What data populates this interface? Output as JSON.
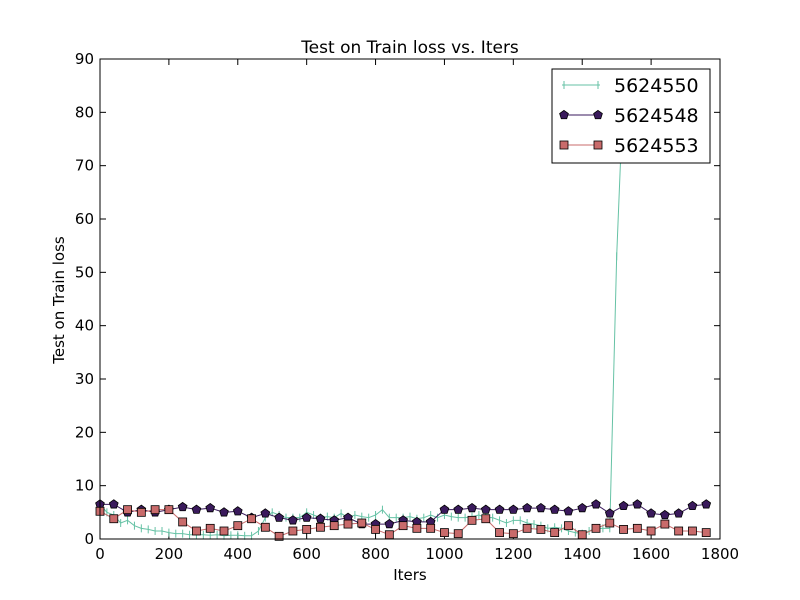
{
  "chart_data": {
    "type": "line",
    "title": "Test on Train loss  vs. Iters",
    "xlabel": "Iters",
    "ylabel": "Test on Train loss",
    "xlim": [
      0,
      1800
    ],
    "ylim": [
      0,
      90
    ],
    "xticks": [
      0,
      200,
      400,
      600,
      800,
      1000,
      1200,
      1400,
      1600,
      1800
    ],
    "yticks": [
      0,
      10,
      20,
      30,
      40,
      50,
      60,
      70,
      80,
      90
    ],
    "grid": false,
    "legend_position": "top-right",
    "series": [
      {
        "name": "5624550",
        "color": "#66c2a5",
        "marker": "tick",
        "x": [
          0,
          20,
          40,
          60,
          80,
          100,
          120,
          140,
          160,
          180,
          200,
          220,
          240,
          260,
          280,
          300,
          320,
          340,
          360,
          380,
          400,
          420,
          440,
          460,
          480,
          500,
          520,
          540,
          560,
          580,
          600,
          620,
          640,
          660,
          680,
          700,
          720,
          740,
          760,
          780,
          800,
          820,
          840,
          860,
          880,
          900,
          920,
          940,
          960,
          980,
          1000,
          1020,
          1040,
          1060,
          1080,
          1100,
          1120,
          1140,
          1160,
          1180,
          1200,
          1220,
          1240,
          1260,
          1280,
          1300,
          1320,
          1340,
          1360,
          1380,
          1400,
          1420,
          1440,
          1460,
          1480,
          1500,
          1520,
          1540,
          1560,
          1580,
          1600,
          1620,
          1640,
          1660,
          1680,
          1700,
          1720,
          1740,
          1760
        ],
        "y": [
          6.5,
          5.0,
          4.5,
          3.0,
          3.5,
          2.5,
          2.0,
          1.8,
          1.5,
          1.5,
          1.2,
          1.0,
          1.0,
          0.8,
          0.8,
          0.8,
          0.7,
          0.8,
          0.6,
          0.7,
          0.7,
          0.6,
          0.6,
          1.5,
          4.0,
          5.0,
          4.5,
          4.0,
          4.0,
          4.0,
          5.0,
          4.5,
          4.0,
          4.2,
          4.0,
          4.8,
          4.0,
          4.5,
          4.2,
          4.0,
          4.5,
          5.5,
          4.0,
          4.0,
          4.0,
          4.2,
          3.8,
          4.0,
          4.5,
          4.0,
          4.5,
          4.2,
          4.0,
          4.0,
          4.2,
          4.5,
          4.0,
          4.0,
          3.5,
          3.0,
          3.5,
          3.5,
          3.0,
          2.8,
          2.5,
          2.0,
          2.2,
          2.0,
          1.5,
          1.2,
          1.0,
          1.5,
          2.0,
          2.0,
          2.0,
          53.0,
          85.0,
          85.0,
          85.0,
          85.0,
          85.0,
          85.0,
          85.0,
          85.0,
          85.0,
          85.0,
          85.0,
          85.0,
          85.0
        ]
      },
      {
        "name": "5624548",
        "color": "#3a1a5c",
        "marker": "pentagon",
        "x": [
          0,
          40,
          80,
          120,
          160,
          200,
          240,
          280,
          320,
          360,
          400,
          440,
          480,
          520,
          560,
          600,
          640,
          680,
          720,
          760,
          800,
          840,
          880,
          920,
          960,
          1000,
          1040,
          1080,
          1120,
          1160,
          1200,
          1240,
          1280,
          1320,
          1360,
          1400,
          1440,
          1480,
          1520,
          1560,
          1600,
          1640,
          1680,
          1720,
          1760
        ],
        "y": [
          6.5,
          6.5,
          5.0,
          5.5,
          5.0,
          5.5,
          6.0,
          5.5,
          5.8,
          5.0,
          5.2,
          4.0,
          4.8,
          4.0,
          3.5,
          4.0,
          3.8,
          3.5,
          4.0,
          2.8,
          2.8,
          2.8,
          3.5,
          3.2,
          3.2,
          5.5,
          5.5,
          5.8,
          5.5,
          5.5,
          5.5,
          5.8,
          5.8,
          5.5,
          5.2,
          5.8,
          6.5,
          4.8,
          6.2,
          6.5,
          4.8,
          4.5,
          4.8,
          6.2,
          6.5
        ]
      },
      {
        "name": "5624553",
        "color": "#c96b6b",
        "marker": "square",
        "x": [
          0,
          40,
          80,
          120,
          160,
          200,
          240,
          280,
          320,
          360,
          400,
          440,
          480,
          520,
          560,
          600,
          640,
          680,
          720,
          760,
          800,
          840,
          880,
          920,
          960,
          1000,
          1040,
          1080,
          1120,
          1160,
          1200,
          1240,
          1280,
          1320,
          1360,
          1400,
          1440,
          1480,
          1520,
          1560,
          1600,
          1640,
          1680,
          1720,
          1760
        ],
        "y": [
          5.2,
          3.8,
          5.5,
          5.0,
          5.5,
          5.5,
          3.2,
          1.5,
          2.0,
          1.5,
          2.5,
          3.8,
          2.2,
          0.5,
          1.5,
          1.8,
          2.2,
          2.5,
          2.8,
          3.0,
          1.8,
          0.8,
          2.5,
          2.0,
          2.0,
          1.2,
          1.0,
          3.5,
          3.8,
          1.2,
          1.0,
          2.0,
          1.8,
          1.2,
          2.5,
          0.8,
          2.0,
          3.0,
          1.8,
          2.0,
          1.5,
          2.8,
          1.5,
          1.5,
          1.2
        ]
      }
    ]
  }
}
